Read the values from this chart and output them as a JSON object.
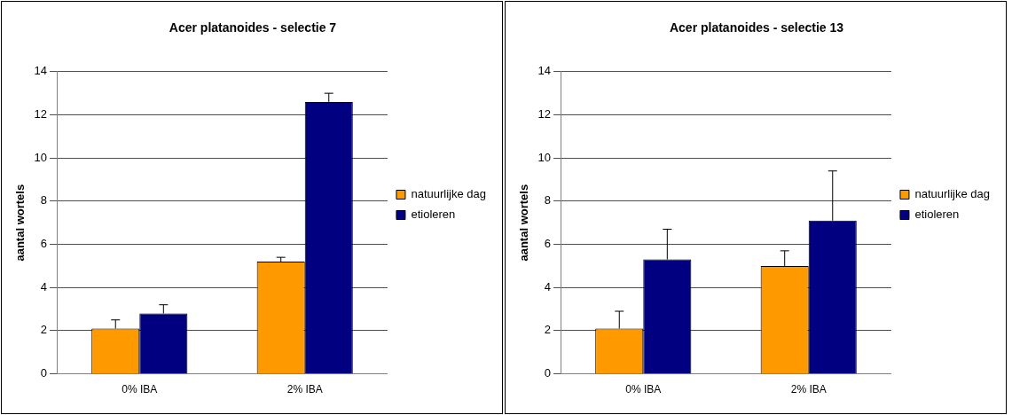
{
  "chart_data": [
    {
      "type": "bar",
      "title": "Acer platanoides - selectie 7",
      "ylabel": "aantal wortels",
      "categories": [
        "0% IBA",
        "2% IBA"
      ],
      "series": [
        {
          "name": "natuurlijke dag",
          "color": "#ff9900",
          "values": [
            2.1,
            5.2
          ],
          "errors": [
            [
              2.1,
              2.5
            ],
            [
              5.2,
              5.4
            ]
          ]
        },
        {
          "name": "etioleren",
          "color": "#000080",
          "values": [
            2.8,
            12.6
          ],
          "errors": [
            [
              2.8,
              3.2
            ],
            [
              12.6,
              13.0
            ]
          ]
        }
      ],
      "ylim": [
        0,
        14
      ],
      "yticks": [
        0,
        2,
        4,
        6,
        8,
        10,
        12,
        14
      ],
      "grid": "y",
      "legend": "right"
    },
    {
      "type": "bar",
      "title": "Acer platanoides - selectie 13",
      "ylabel": "aantal wortels",
      "categories": [
        "0% IBA",
        "2% IBA"
      ],
      "series": [
        {
          "name": "natuurlijke dag",
          "color": "#ff9900",
          "values": [
            2.1,
            5.0
          ],
          "errors": [
            [
              2.1,
              2.9
            ],
            [
              5.0,
              5.7
            ]
          ]
        },
        {
          "name": "etioleren",
          "color": "#000080",
          "values": [
            5.3,
            7.1
          ],
          "errors": [
            [
              5.3,
              6.7
            ],
            [
              7.1,
              9.4
            ]
          ]
        }
      ],
      "ylim": [
        0,
        14
      ],
      "yticks": [
        0,
        2,
        4,
        6,
        8,
        10,
        12,
        14
      ],
      "grid": "y",
      "legend": "right"
    }
  ]
}
